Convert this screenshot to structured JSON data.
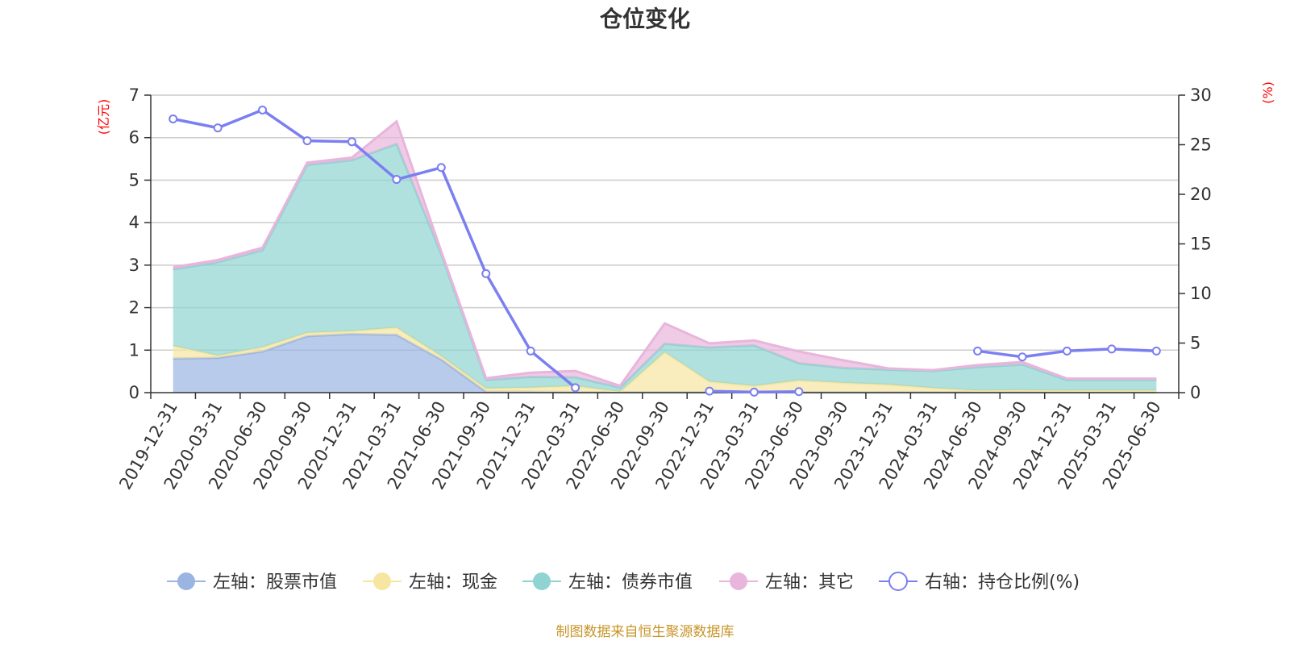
{
  "title": "仓位变化",
  "source": "制图数据来自恒生聚源数据库",
  "colors": {
    "stock": "#9bb5e3",
    "cash": "#f7e6a2",
    "bond": "#8fd4d2",
    "other": "#e8b5dc",
    "ratio": "#7b7ff0",
    "axis_unit": "#ff0000",
    "source": "#c8952a"
  },
  "chart_data": {
    "type": "area",
    "title": "仓位变化",
    "categories": [
      "2019-12-31",
      "2020-03-31",
      "2020-06-30",
      "2020-09-30",
      "2020-12-31",
      "2021-03-31",
      "2021-06-30",
      "2021-09-30",
      "2021-12-31",
      "2022-03-31",
      "2022-06-30",
      "2022-09-30",
      "2022-12-31",
      "2023-03-31",
      "2023-06-30",
      "2023-09-30",
      "2023-12-31",
      "2024-03-31",
      "2024-06-30",
      "2024-09-30",
      "2024-12-31",
      "2025-03-31",
      "2025-06-30"
    ],
    "y_left": {
      "label": "(亿元)",
      "range": [
        0,
        7
      ],
      "ticks": [
        "0",
        "1",
        "2",
        "3",
        "4",
        "5",
        "6",
        "7"
      ]
    },
    "y_right": {
      "label": "(%)",
      "range": [
        0,
        30
      ],
      "ticks": [
        "0",
        "5",
        "10",
        "15",
        "20",
        "25",
        "30"
      ]
    },
    "grid": true,
    "legend_position": "bottom",
    "series": [
      {
        "name": "左轴：股票市值",
        "axis": "left",
        "stacked": true,
        "values": [
          0.8,
          0.82,
          0.97,
          1.33,
          1.38,
          1.36,
          0.78,
          0.02,
          0.02,
          0.01,
          0.01,
          0.01,
          0.01,
          0.01,
          0.01,
          0.01,
          0.01,
          0.01,
          0.01,
          0.01,
          0.01,
          0.01,
          0.01
        ]
      },
      {
        "name": "左轴：现金",
        "axis": "left",
        "stacked": true,
        "values": [
          0.3,
          0.05,
          0.1,
          0.08,
          0.07,
          0.17,
          0.08,
          0.08,
          0.1,
          0.15,
          0.01,
          0.94,
          0.25,
          0.15,
          0.28,
          0.22,
          0.18,
          0.1,
          0.04,
          0.05,
          0.04,
          0.04,
          0.04
        ]
      },
      {
        "name": "左轴：债券市值",
        "axis": "left",
        "stacked": true,
        "values": [
          1.8,
          2.2,
          2.28,
          3.95,
          4.02,
          4.32,
          2.4,
          0.2,
          0.25,
          0.2,
          0.1,
          0.2,
          0.8,
          0.95,
          0.4,
          0.35,
          0.35,
          0.4,
          0.55,
          0.6,
          0.25,
          0.25,
          0.25
        ]
      },
      {
        "name": "左轴：其它",
        "axis": "left",
        "stacked": true,
        "values": [
          0.05,
          0.05,
          0.06,
          0.05,
          0.06,
          0.53,
          0.06,
          0.04,
          0.1,
          0.15,
          0.04,
          0.48,
          0.1,
          0.12,
          0.28,
          0.18,
          0.03,
          0.02,
          0.05,
          0.06,
          0.03,
          0.03,
          0.03
        ]
      },
      {
        "name": "右轴：持仓比例(%)",
        "axis": "right",
        "type": "line",
        "values": [
          27.6,
          26.7,
          28.5,
          25.4,
          25.3,
          21.5,
          22.7,
          12.0,
          4.2,
          0.5,
          null,
          null,
          0.15,
          0.05,
          0.1,
          null,
          null,
          null,
          4.2,
          3.6,
          4.2,
          4.4,
          4.2
        ]
      }
    ]
  }
}
